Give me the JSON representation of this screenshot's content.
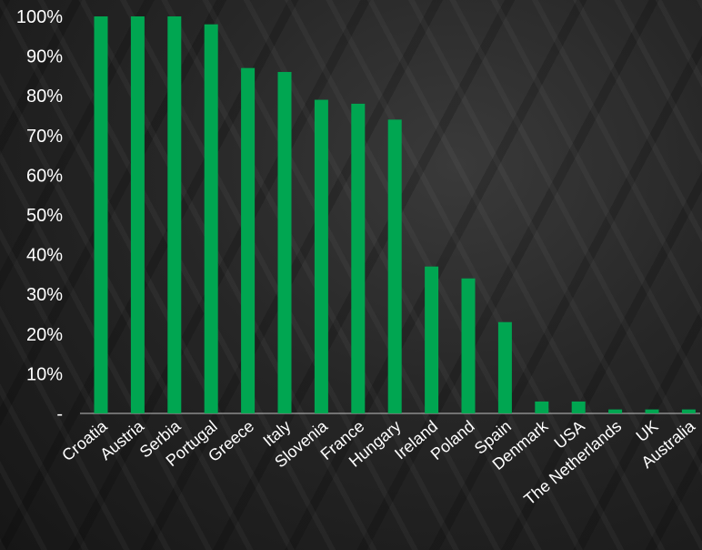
{
  "chart_data": {
    "type": "bar",
    "title": "",
    "xlabel": "",
    "ylabel": "",
    "ylim": [
      0,
      100
    ],
    "y_ticks": [
      "-",
      "10%",
      "20%",
      "30%",
      "40%",
      "50%",
      "60%",
      "70%",
      "80%",
      "90%",
      "100%"
    ],
    "categories": [
      "Croatia",
      "Austria",
      "Serbia",
      "Portugal",
      "Greece",
      "Italy",
      "Slovenia",
      "France",
      "Hungary",
      "Ireland",
      "Poland",
      "Spain",
      "Denmark",
      "USA",
      "The Netherlands",
      "UK",
      "Australia"
    ],
    "values": [
      100,
      100,
      100,
      98,
      87,
      86,
      79,
      78,
      74,
      37,
      34,
      23,
      3,
      3,
      1,
      1,
      1
    ],
    "bar_color": "#00a651",
    "grid": false,
    "legend": "none"
  }
}
